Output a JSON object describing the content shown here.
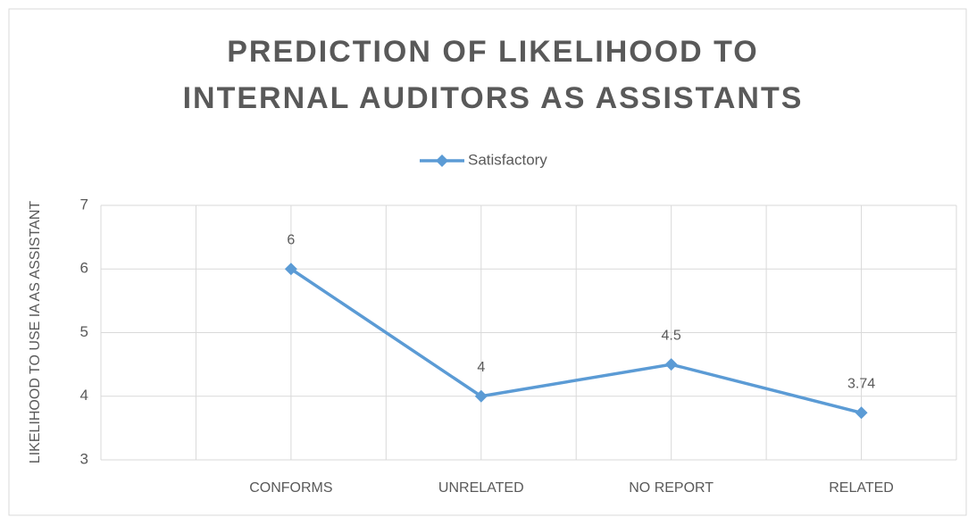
{
  "chart_data": {
    "type": "line",
    "title": [
      "PREDICTION OF LIKELIHOOD TO",
      "INTERNAL AUDITORS AS ASSISTANTS"
    ],
    "y_label": "LIKELIHOOD TO USE IA  AS ASSISTANT",
    "categories": [
      "CONFORMS",
      "UNRELATED",
      "NO REPORT",
      "RELATED"
    ],
    "series": [
      {
        "name": "Satisfactory",
        "color": "#5b9bd5",
        "values": [
          6,
          4,
          4.5,
          3.74
        ]
      }
    ],
    "ylim": [
      3,
      7
    ],
    "yticks": [
      3,
      4,
      5,
      6,
      7
    ],
    "grid": true,
    "legend": "top"
  }
}
